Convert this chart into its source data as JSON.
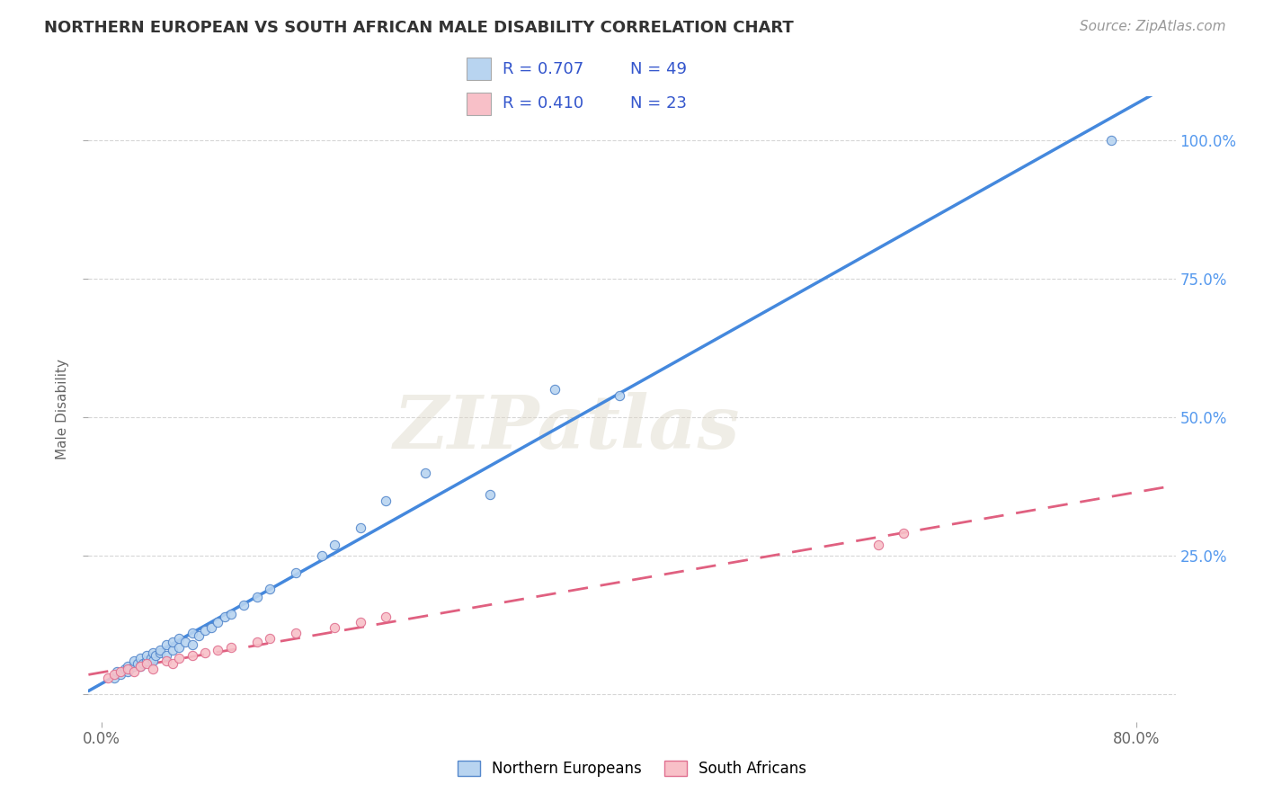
{
  "title": "NORTHERN EUROPEAN VS SOUTH AFRICAN MALE DISABILITY CORRELATION CHART",
  "source": "Source: ZipAtlas.com",
  "ylabel": "Male Disability",
  "xlim": [
    -1.0,
    83.0
  ],
  "ylim": [
    -5.0,
    108.0
  ],
  "x_ticks": [
    0.0,
    80.0
  ],
  "x_tick_labels": [
    "0.0%",
    "80.0%"
  ],
  "y_ticks": [
    0.0,
    25.0,
    50.0,
    75.0,
    100.0
  ],
  "y_tick_labels": [
    "",
    "25.0%",
    "50.0%",
    "75.0%",
    "100.0%"
  ],
  "watermark": "ZIPatlas",
  "series1_label": "Northern Europeans",
  "series1_fill_color": "#b8d4f0",
  "series1_edge_color": "#5588cc",
  "series1_line_color": "#4488dd",
  "series1_R": "0.707",
  "series1_N": "49",
  "series2_label": "South Africans",
  "series2_fill_color": "#f8c0c8",
  "series2_edge_color": "#e07090",
  "series2_line_color": "#e06080",
  "series2_R": "0.410",
  "series2_N": "23",
  "legend_text_color": "#3355cc",
  "title_color": "#333333",
  "grid_color": "#cccccc",
  "background_color": "#ffffff",
  "axis_right_tick_color": "#5599ee",
  "ne_x": [
    1.0,
    1.2,
    1.5,
    1.8,
    2.0,
    2.0,
    2.2,
    2.5,
    2.5,
    2.8,
    3.0,
    3.0,
    3.2,
    3.5,
    3.5,
    3.8,
    4.0,
    4.0,
    4.2,
    4.5,
    4.5,
    5.0,
    5.0,
    5.5,
    5.5,
    6.0,
    6.0,
    6.5,
    7.0,
    7.0,
    7.5,
    8.0,
    8.5,
    9.0,
    9.5,
    10.0,
    11.0,
    12.0,
    13.0,
    15.0,
    17.0,
    18.0,
    20.0,
    22.0,
    25.0,
    30.0,
    35.0,
    40.0,
    78.0
  ],
  "ne_y": [
    3.0,
    4.0,
    3.5,
    4.5,
    4.0,
    5.0,
    4.5,
    5.0,
    6.0,
    5.5,
    5.0,
    6.5,
    5.5,
    6.0,
    7.0,
    6.5,
    6.0,
    7.5,
    7.0,
    7.5,
    8.0,
    7.0,
    9.0,
    8.0,
    9.5,
    8.5,
    10.0,
    9.5,
    9.0,
    11.0,
    10.5,
    11.5,
    12.0,
    13.0,
    14.0,
    14.5,
    16.0,
    17.5,
    19.0,
    22.0,
    25.0,
    27.0,
    30.0,
    35.0,
    40.0,
    36.0,
    55.0,
    54.0,
    100.0
  ],
  "sa_x": [
    0.5,
    1.0,
    1.5,
    2.0,
    2.5,
    3.0,
    3.5,
    4.0,
    5.0,
    5.5,
    6.0,
    7.0,
    8.0,
    9.0,
    10.0,
    12.0,
    13.0,
    15.0,
    18.0,
    20.0,
    22.0,
    60.0,
    62.0
  ],
  "sa_y": [
    3.0,
    3.5,
    4.0,
    4.5,
    4.0,
    5.0,
    5.5,
    4.5,
    6.0,
    5.5,
    6.5,
    7.0,
    7.5,
    8.0,
    8.5,
    9.5,
    10.0,
    11.0,
    12.0,
    13.0,
    14.0,
    27.0,
    29.0
  ]
}
